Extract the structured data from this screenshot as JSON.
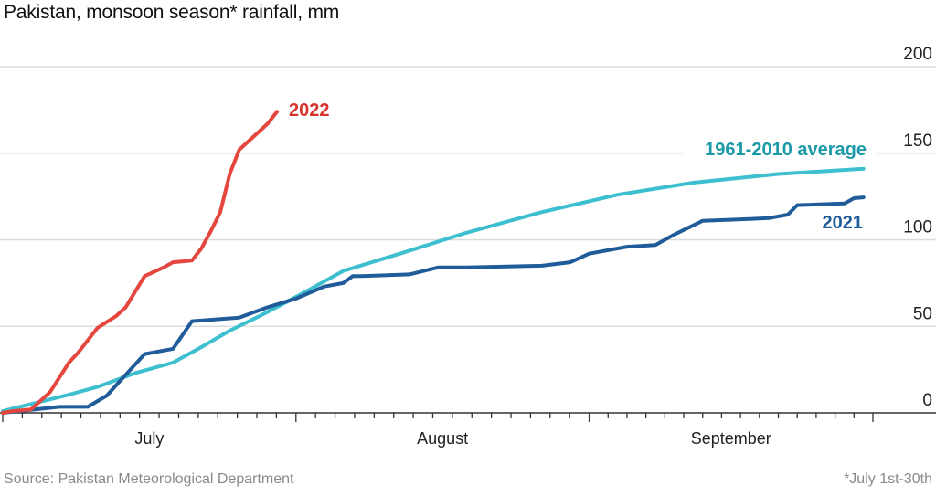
{
  "chart_data": {
    "type": "line",
    "title": "Pakistan, monsoon season* rainfall, mm",
    "source": "Source: Pakistan Meteorological Department",
    "footnote": "*July 1st-30th",
    "xlabel": "",
    "ylabel": "",
    "xlim": [
      "07-01",
      "10-01"
    ],
    "ylim": [
      0,
      200
    ],
    "yticks": [
      0,
      50,
      100,
      150,
      200
    ],
    "xtick_labels": [
      "July",
      "August",
      "September"
    ],
    "grid": true,
    "y_axis_side": "right",
    "series": [
      {
        "name": "2022",
        "color": "#e5473f",
        "x": [
          "07-01",
          "07-02",
          "07-04",
          "07-06",
          "07-08",
          "07-09",
          "07-11",
          "07-13",
          "07-14",
          "07-16",
          "07-18",
          "07-19",
          "07-21",
          "07-22",
          "07-23",
          "07-24",
          "07-25",
          "07-26",
          "07-27",
          "07-28",
          "07-29",
          "07-30"
        ],
        "y": [
          0,
          1,
          2,
          12,
          29,
          35,
          49,
          56,
          61,
          79,
          84,
          87,
          88,
          95,
          105,
          116,
          138,
          152,
          157,
          162,
          167,
          174
        ]
      },
      {
        "name": "1961-2010 average",
        "color": "#3dbfd0",
        "x": [
          "07-01",
          "07-08",
          "07-11",
          "07-15",
          "07-19",
          "07-22",
          "07-25",
          "07-28",
          "07-31",
          "08-03",
          "08-06",
          "08-12",
          "08-19",
          "08-27",
          "09-04",
          "09-12",
          "09-21",
          "09-30"
        ],
        "y": [
          1,
          10.5,
          15,
          23,
          29,
          38,
          47.5,
          55.5,
          64,
          73,
          82,
          92,
          104,
          116,
          126,
          133,
          138,
          141
        ]
      },
      {
        "name": "2021",
        "color": "#1f5c99",
        "x": [
          "07-01",
          "07-07",
          "07-10",
          "07-12",
          "07-14",
          "07-16",
          "07-18",
          "07-19",
          "07-21",
          "07-26",
          "07-29",
          "08-01",
          "08-04",
          "08-06",
          "08-07",
          "08-08",
          "08-13",
          "08-16",
          "08-19",
          "08-27",
          "08-30",
          "09-01",
          "09-05",
          "09-08",
          "09-10",
          "09-13",
          "09-18",
          "09-20",
          "09-22",
          "09-23",
          "09-28",
          "09-29",
          "09-30"
        ],
        "y": [
          0,
          3.5,
          3.5,
          10,
          22,
          34,
          36,
          37,
          53,
          55,
          61,
          66,
          73,
          75,
          79,
          79,
          80,
          84,
          84,
          85,
          87,
          92,
          96,
          97,
          103,
          111,
          112,
          112.5,
          114.5,
          120,
          121,
          124,
          124.5
        ]
      }
    ],
    "label_colors": {
      "2022": "#d8342c",
      "1961-2010 average": "#1a9aa8",
      "2021": "#1f5c99"
    }
  }
}
